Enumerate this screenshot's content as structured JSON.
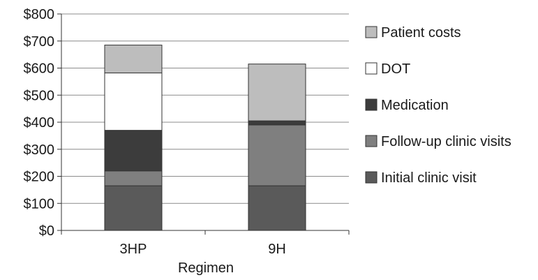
{
  "chart_data": {
    "type": "bar",
    "stacked": true,
    "xlabel": "Regimen",
    "ylabel": "",
    "categories": [
      "3HP",
      "9H"
    ],
    "ylim": [
      0,
      800
    ],
    "yticks": [
      0,
      100,
      200,
      300,
      400,
      500,
      600,
      700,
      800
    ],
    "ytick_labels": [
      "$0",
      "$100",
      "$200",
      "$300",
      "$400",
      "$500",
      "$600",
      "$700",
      "$800"
    ],
    "grid": true,
    "legend_position": "right",
    "series": [
      {
        "name": "Initial clinic visit",
        "color": "#5a5a5a",
        "values": [
          165,
          165
        ]
      },
      {
        "name": "Follow-up clinic visits",
        "color": "#7f7f7f",
        "values": [
          55,
          225
        ]
      },
      {
        "name": "Medication",
        "color": "#3c3c3c",
        "values": [
          150,
          15
        ]
      },
      {
        "name": "DOT",
        "color": "#ffffff",
        "values": [
          212,
          0
        ]
      },
      {
        "name": "Patient costs",
        "color": "#bdbdbd",
        "values": [
          103,
          210
        ]
      }
    ]
  }
}
